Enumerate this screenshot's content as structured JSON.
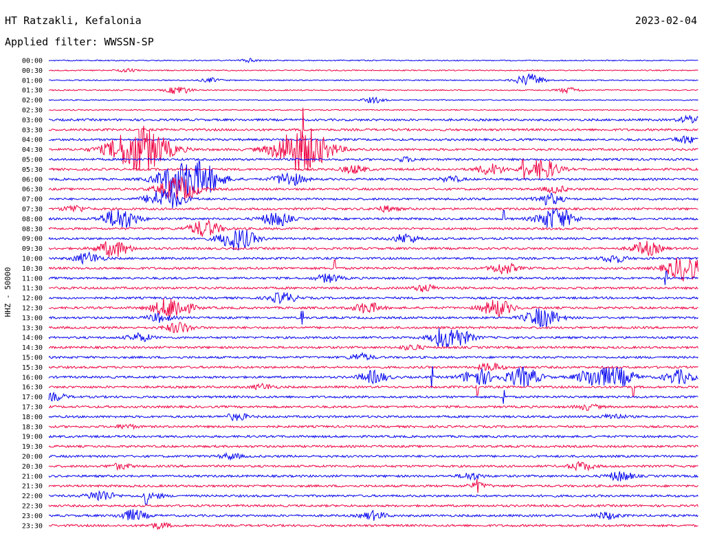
{
  "header": {
    "station": "HT Ratzakli, Kefalonia",
    "date": "2023-02-04",
    "filter": "Applied filter: WWSSN-SP"
  },
  "chart_data": {
    "type": "line",
    "title": "HT Ratzakli, Kefalonia",
    "date": "2023-02-04",
    "filter": "WWSSN-SP",
    "ylabel": "HHZ - 50000",
    "row_labels": [
      "00:00",
      "00:30",
      "01:00",
      "01:30",
      "02:00",
      "02:30",
      "03:00",
      "03:30",
      "04:00",
      "04:30",
      "05:00",
      "05:30",
      "06:00",
      "06:30",
      "07:00",
      "07:30",
      "08:00",
      "08:30",
      "09:00",
      "09:30",
      "10:00",
      "10:30",
      "11:00",
      "11:30",
      "12:00",
      "12:30",
      "13:00",
      "13:30",
      "14:00",
      "14:30",
      "15:00",
      "15:30",
      "16:00",
      "16:30",
      "17:00",
      "17:30",
      "18:00",
      "18:30",
      "19:00",
      "19:30",
      "20:00",
      "20:30",
      "21:00",
      "21:30",
      "22:00",
      "22:30",
      "23:00",
      "23:30"
    ],
    "series_colors": [
      "#0000ee",
      "#ee0040"
    ],
    "row_minutes": 30,
    "grid": false,
    "bursts": [
      {
        "row": 0,
        "at": 0.31,
        "amp": 2.5
      },
      {
        "row": 1,
        "at": 0.12,
        "amp": 2
      },
      {
        "row": 2,
        "at": 0.25,
        "amp": 3
      },
      {
        "row": 2,
        "at": 0.74,
        "amp": 9
      },
      {
        "row": 3,
        "at": 0.2,
        "amp": 6
      },
      {
        "row": 3,
        "at": 0.8,
        "amp": 4
      },
      {
        "row": 4,
        "at": 0.5,
        "amp": 4
      },
      {
        "row": 6,
        "at": 0.99,
        "amp": 6
      },
      {
        "row": 8,
        "at": 0.98,
        "amp": 5
      },
      {
        "row": 9,
        "at": 0.14,
        "amp": 34
      },
      {
        "row": 9,
        "at": 0.39,
        "amp": 32
      },
      {
        "row": 10,
        "at": 0.55,
        "amp": 3
      },
      {
        "row": 11,
        "at": 0.47,
        "amp": 6
      },
      {
        "row": 11,
        "at": 0.68,
        "amp": 8
      },
      {
        "row": 11,
        "at": 0.76,
        "amp": 14
      },
      {
        "row": 12,
        "at": 0.2,
        "amp": 22
      },
      {
        "row": 12,
        "at": 0.24,
        "amp": 18
      },
      {
        "row": 12,
        "at": 0.37,
        "amp": 10
      },
      {
        "row": 12,
        "at": 0.62,
        "amp": 4
      },
      {
        "row": 13,
        "at": 0.2,
        "amp": 18
      },
      {
        "row": 13,
        "at": 0.78,
        "amp": 5
      },
      {
        "row": 14,
        "at": 0.18,
        "amp": 16
      },
      {
        "row": 14,
        "at": 0.77,
        "amp": 8
      },
      {
        "row": 15,
        "at": 0.04,
        "amp": 5
      },
      {
        "row": 15,
        "at": 0.52,
        "amp": 4
      },
      {
        "row": 16,
        "at": 0.11,
        "amp": 15
      },
      {
        "row": 16,
        "at": 0.35,
        "amp": 10
      },
      {
        "row": 16,
        "at": 0.78,
        "amp": 16
      },
      {
        "row": 17,
        "at": 0.24,
        "amp": 12
      },
      {
        "row": 18,
        "at": 0.29,
        "amp": 16
      },
      {
        "row": 18,
        "at": 0.55,
        "amp": 7
      },
      {
        "row": 19,
        "at": 0.1,
        "amp": 12
      },
      {
        "row": 19,
        "at": 0.92,
        "amp": 10
      },
      {
        "row": 20,
        "at": 0.06,
        "amp": 8
      },
      {
        "row": 20,
        "at": 0.87,
        "amp": 6
      },
      {
        "row": 21,
        "at": 0.7,
        "amp": 8
      },
      {
        "row": 21,
        "at": 0.98,
        "amp": 18
      },
      {
        "row": 22,
        "at": 0.43,
        "amp": 6
      },
      {
        "row": 23,
        "at": 0.58,
        "amp": 5
      },
      {
        "row": 24,
        "at": 0.36,
        "amp": 8
      },
      {
        "row": 25,
        "at": 0.19,
        "amp": 16
      },
      {
        "row": 25,
        "at": 0.49,
        "amp": 8
      },
      {
        "row": 25,
        "at": 0.69,
        "amp": 12
      },
      {
        "row": 26,
        "at": 0.17,
        "amp": 6
      },
      {
        "row": 26,
        "at": 0.76,
        "amp": 14
      },
      {
        "row": 27,
        "at": 0.2,
        "amp": 8
      },
      {
        "row": 28,
        "at": 0.62,
        "amp": 16
      },
      {
        "row": 28,
        "at": 0.14,
        "amp": 6
      },
      {
        "row": 29,
        "at": 0.56,
        "amp": 4
      },
      {
        "row": 30,
        "at": 0.48,
        "amp": 5
      },
      {
        "row": 31,
        "at": 0.68,
        "amp": 6
      },
      {
        "row": 32,
        "at": 0.5,
        "amp": 9
      },
      {
        "row": 32,
        "at": 0.66,
        "amp": 12
      },
      {
        "row": 32,
        "at": 0.73,
        "amp": 14
      },
      {
        "row": 32,
        "at": 0.84,
        "amp": 14
      },
      {
        "row": 32,
        "at": 0.88,
        "amp": 12
      },
      {
        "row": 32,
        "at": 0.97,
        "amp": 10
      },
      {
        "row": 33,
        "at": 0.33,
        "amp": 4
      },
      {
        "row": 34,
        "at": 0.01,
        "amp": 5
      },
      {
        "row": 35,
        "at": 0.83,
        "amp": 4
      },
      {
        "row": 36,
        "at": 0.29,
        "amp": 5
      },
      {
        "row": 36,
        "at": 0.87,
        "amp": 4
      },
      {
        "row": 37,
        "at": 0.12,
        "amp": 3
      },
      {
        "row": 40,
        "at": 0.28,
        "amp": 4
      },
      {
        "row": 41,
        "at": 0.11,
        "amp": 4
      },
      {
        "row": 41,
        "at": 0.82,
        "amp": 6
      },
      {
        "row": 42,
        "at": 0.88,
        "amp": 7
      },
      {
        "row": 42,
        "at": 0.65,
        "amp": 5
      },
      {
        "row": 43,
        "at": 0.66,
        "amp": 4
      },
      {
        "row": 44,
        "at": 0.08,
        "amp": 8
      },
      {
        "row": 44,
        "at": 0.16,
        "amp": 4
      },
      {
        "row": 46,
        "at": 0.13,
        "amp": 8
      },
      {
        "row": 46,
        "at": 0.5,
        "amp": 6
      },
      {
        "row": 46,
        "at": 0.86,
        "amp": 5
      },
      {
        "row": 47,
        "at": 0.17,
        "amp": 4
      }
    ],
    "spikes": [
      {
        "row": 7,
        "at": 0.14,
        "amp": 34
      },
      {
        "row": 7,
        "at": 0.39,
        "amp": 32
      },
      {
        "row": 11,
        "at": 0.73,
        "amp": 14
      },
      {
        "row": 16,
        "at": 0.36,
        "amp": 10
      },
      {
        "row": 16,
        "at": 0.7,
        "amp": 12
      },
      {
        "row": 21,
        "at": 0.44,
        "amp": 12
      },
      {
        "row": 22,
        "at": 0.95,
        "amp": 10
      },
      {
        "row": 26,
        "at": 0.39,
        "amp": 10
      },
      {
        "row": 28,
        "at": 0.6,
        "amp": 14
      },
      {
        "row": 32,
        "at": 0.59,
        "amp": 16
      },
      {
        "row": 33,
        "at": 0.66,
        "amp": 12
      },
      {
        "row": 33,
        "at": 0.9,
        "amp": 14
      },
      {
        "row": 34,
        "at": 0.7,
        "amp": 10
      },
      {
        "row": 43,
        "at": 0.66,
        "amp": 10
      },
      {
        "row": 44,
        "at": 0.15,
        "amp": 12
      }
    ]
  }
}
